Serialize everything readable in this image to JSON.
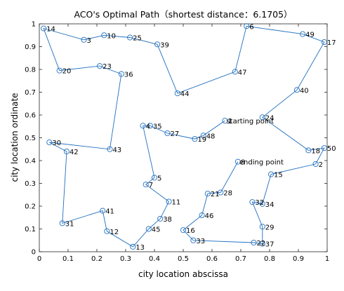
{
  "chart_data": {
    "type": "scatter",
    "title": "ACO's Optimal Path（shortest distance：6.1705）",
    "xlabel": "city location abscissa",
    "ylabel": "city location ordinate",
    "xlim": [
      0,
      1
    ],
    "ylim": [
      0,
      1
    ],
    "xticks": [
      "0",
      "0.1",
      "0.2",
      "0.3",
      "0.4",
      "0.5",
      "0.6",
      "0.7",
      "0.8",
      "0.9",
      "1"
    ],
    "yticks": [
      "0",
      "0.1",
      "0.2",
      "0.3",
      "0.4",
      "0.5",
      "0.6",
      "0.7",
      "0.8",
      "0.9",
      "1"
    ],
    "grid": false,
    "line_color": "#1f6fbf",
    "marker": "circle",
    "cities": [
      {
        "id": "1",
        "x": 0.645,
        "y": 0.575
      },
      {
        "id": "2",
        "x": 0.96,
        "y": 0.385
      },
      {
        "id": "3",
        "x": 0.155,
        "y": 0.93
      },
      {
        "id": "4",
        "x": 0.36,
        "y": 0.553
      },
      {
        "id": "5",
        "x": 0.4,
        "y": 0.325
      },
      {
        "id": "6",
        "x": 0.72,
        "y": 0.99
      },
      {
        "id": "7",
        "x": 0.37,
        "y": 0.295
      },
      {
        "id": "8",
        "x": 0.69,
        "y": 0.395
      },
      {
        "id": "10",
        "x": 0.225,
        "y": 0.95
      },
      {
        "id": "11",
        "x": 0.45,
        "y": 0.22
      },
      {
        "id": "12",
        "x": 0.235,
        "y": 0.09
      },
      {
        "id": "13",
        "x": 0.325,
        "y": 0.022
      },
      {
        "id": "14",
        "x": 0.015,
        "y": 0.98
      },
      {
        "id": "15",
        "x": 0.805,
        "y": 0.34
      },
      {
        "id": "16",
        "x": 0.5,
        "y": 0.095
      },
      {
        "id": "17",
        "x": 0.99,
        "y": 0.92
      },
      {
        "id": "18",
        "x": 0.935,
        "y": 0.445
      },
      {
        "id": "19",
        "x": 0.54,
        "y": 0.495
      },
      {
        "id": "20",
        "x": 0.07,
        "y": 0.795
      },
      {
        "id": "21",
        "x": 0.585,
        "y": 0.255
      },
      {
        "id": "22",
        "x": 0.745,
        "y": 0.04
      },
      {
        "id": "23",
        "x": 0.21,
        "y": 0.815
      },
      {
        "id": "24",
        "x": 0.775,
        "y": 0.59
      },
      {
        "id": "25",
        "x": 0.315,
        "y": 0.94
      },
      {
        "id": "27",
        "x": 0.445,
        "y": 0.52
      },
      {
        "id": "28",
        "x": 0.63,
        "y": 0.26
      },
      {
        "id": "29",
        "x": 0.775,
        "y": 0.11
      },
      {
        "id": "30",
        "x": 0.035,
        "y": 0.48
      },
      {
        "id": "31",
        "x": 0.08,
        "y": 0.125
      },
      {
        "id": "32",
        "x": 0.74,
        "y": 0.218
      },
      {
        "id": "33",
        "x": 0.535,
        "y": 0.05
      },
      {
        "id": "34",
        "x": 0.775,
        "y": 0.21
      },
      {
        "id": "35",
        "x": 0.385,
        "y": 0.553
      },
      {
        "id": "36",
        "x": 0.285,
        "y": 0.78
      },
      {
        "id": "37",
        "x": 0.775,
        "y": 0.035
      },
      {
        "id": "38",
        "x": 0.42,
        "y": 0.145
      },
      {
        "id": "39",
        "x": 0.41,
        "y": 0.91
      },
      {
        "id": "40",
        "x": 0.895,
        "y": 0.71
      },
      {
        "id": "41",
        "x": 0.22,
        "y": 0.18
      },
      {
        "id": "42",
        "x": 0.095,
        "y": 0.44
      },
      {
        "id": "43",
        "x": 0.245,
        "y": 0.45
      },
      {
        "id": "44",
        "x": 0.48,
        "y": 0.695
      },
      {
        "id": "45",
        "x": 0.38,
        "y": 0.1
      },
      {
        "id": "46",
        "x": 0.565,
        "y": 0.16
      },
      {
        "id": "47",
        "x": 0.68,
        "y": 0.79
      },
      {
        "id": "48",
        "x": 0.57,
        "y": 0.51
      },
      {
        "id": "49",
        "x": 0.915,
        "y": 0.955
      },
      {
        "id": "50",
        "x": 0.99,
        "y": 0.455
      }
    ],
    "path": [
      "1",
      "48",
      "19",
      "27",
      "35",
      "4",
      "5",
      "7",
      "11",
      "38",
      "45",
      "13",
      "12",
      "41",
      "31",
      "42",
      "30",
      "43",
      "36",
      "23",
      "20",
      "14",
      "3",
      "10",
      "25",
      "39",
      "44",
      "47",
      "6",
      "49",
      "17",
      "40",
      "24",
      "18",
      "50",
      "2",
      "15",
      "34",
      "32",
      "29",
      "37",
      "22",
      "33",
      "16",
      "46",
      "21",
      "28",
      "8"
    ],
    "annotations": [
      {
        "text": "starting point",
        "x": 0.645,
        "y": 0.575
      },
      {
        "text": "ending point",
        "x": 0.69,
        "y": 0.395
      }
    ]
  }
}
